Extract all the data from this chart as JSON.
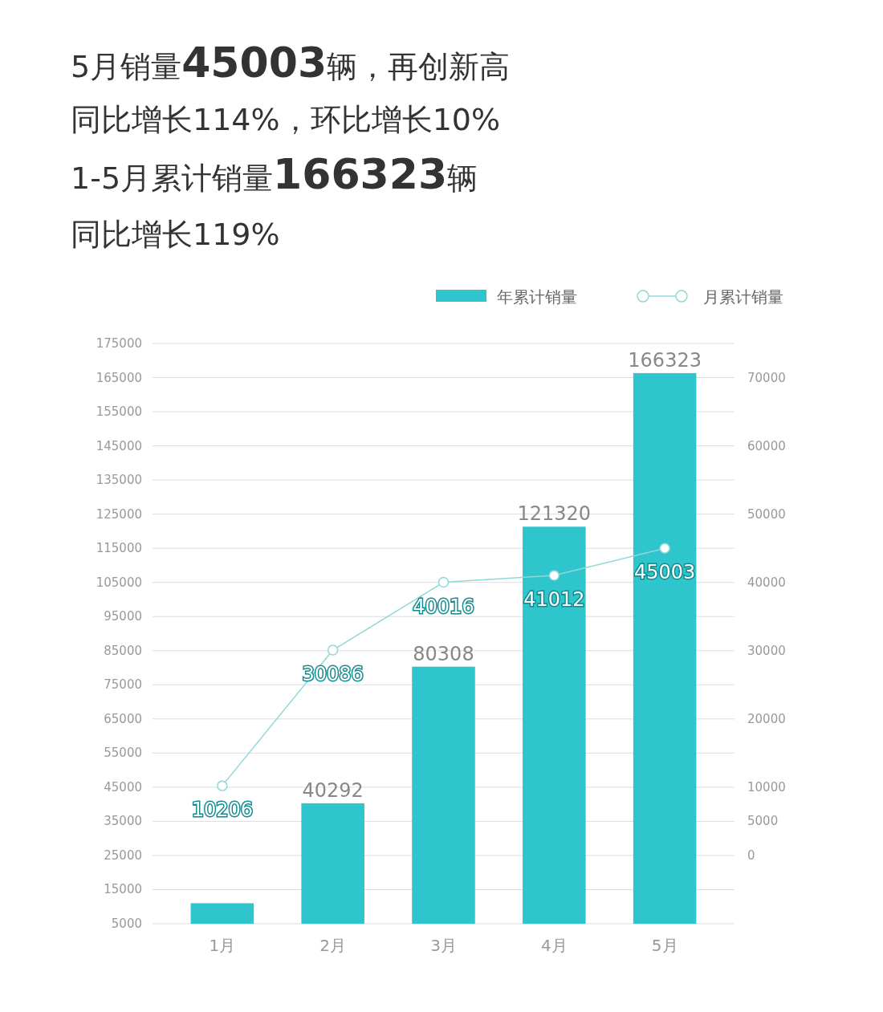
{
  "chart_data": {
    "type": "bar",
    "title": "5月销量45003辆，再创新高",
    "subtitle": "同比增长114%，环比增长10%",
    "annotations": [
      "1-5月累计销量166323辆",
      "同比增长119%"
    ],
    "categories": [
      "1月",
      "2月",
      "3月",
      "4月",
      "5月"
    ],
    "series": [
      {
        "name": "年累计销量",
        "color": "#2ec6cc",
        "values": [
          11000,
          40292,
          80308,
          121320,
          166323
        ],
        "value_labels": [
          null,
          "40292",
          "80308",
          "121320",
          "166323"
        ]
      },
      {
        "name": "月累计销量",
        "type": "line",
        "axis": "y2",
        "color": "#8fd8d8",
        "marker": "circle",
        "values": [
          10206,
          30086,
          40016,
          41012,
          45003
        ],
        "value_labels": [
          "10206",
          "30086",
          "40016",
          "41012",
          "45003"
        ]
      }
    ],
    "ylim": [
      5000,
      175000
    ],
    "yticks": [
      5000,
      15000,
      25000,
      35000,
      45000,
      55000,
      65000,
      75000,
      85000,
      95000,
      105000,
      115000,
      125000,
      135000,
      145000,
      155000,
      165000,
      175000
    ],
    "y2lim": [
      -10000,
      75000
    ],
    "y2ticks": [
      0,
      5000,
      10000,
      20000,
      30000,
      40000,
      50000,
      60000,
      70000
    ],
    "grid": "y",
    "legend": "top right"
  }
}
